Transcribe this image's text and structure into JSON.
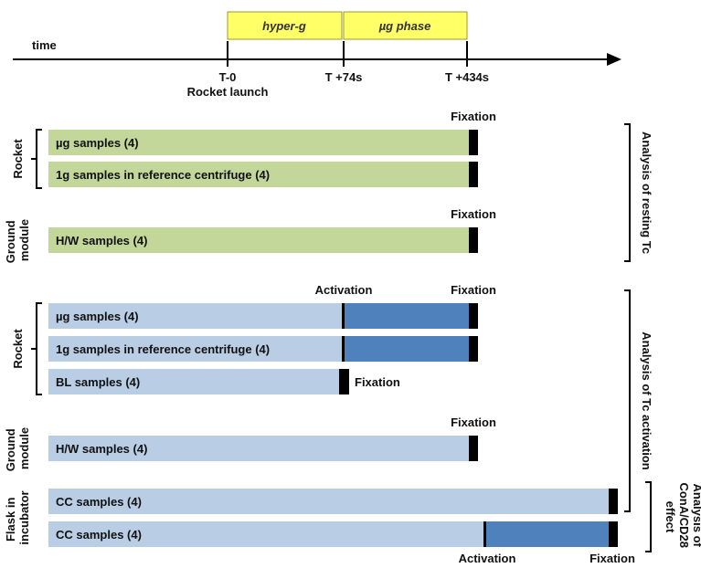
{
  "timeline": {
    "axis_label": "time",
    "phases": [
      {
        "label": "hyper-g"
      },
      {
        "label": "µg phase"
      }
    ],
    "ticks": [
      {
        "label": "T-0",
        "sublabel": "Rocket launch"
      },
      {
        "label": "T +74s"
      },
      {
        "label": "T +434s"
      }
    ]
  },
  "groups": {
    "rocket_1": "Rocket",
    "ground_1": "Ground module",
    "rocket_2": "Rocket",
    "ground_2": "Ground module",
    "flask": "Flask in incubator"
  },
  "samples": {
    "r1_ug": "µg samples (4)",
    "r1_1g": "1g samples in reference centrifuge (4)",
    "g1_hw": "H/W samples (4)",
    "r2_ug": "µg samples (4)",
    "r2_1g": "1g samples in reference centrifuge (4)",
    "r2_bl": "BL samples (4)",
    "g2_hw": "H/W samples (4)",
    "cc_1": "CC samples (4)",
    "cc_2": "CC samples (4)"
  },
  "events": {
    "fixation": "Fixation",
    "activation": "Activation"
  },
  "analysis": {
    "resting": "Analysis of resting Tc",
    "activation": "Analysis of Tc activation",
    "cona": [
      "Analysis of",
      "ConA/CD28",
      "effect"
    ]
  },
  "colors": {
    "green_bar": "#c4d79b",
    "light_blue_bar": "#b9cde5",
    "dark_blue_bar": "#4f81bd",
    "fixation_marker": "#000000",
    "phase_box": "#ffff66"
  }
}
